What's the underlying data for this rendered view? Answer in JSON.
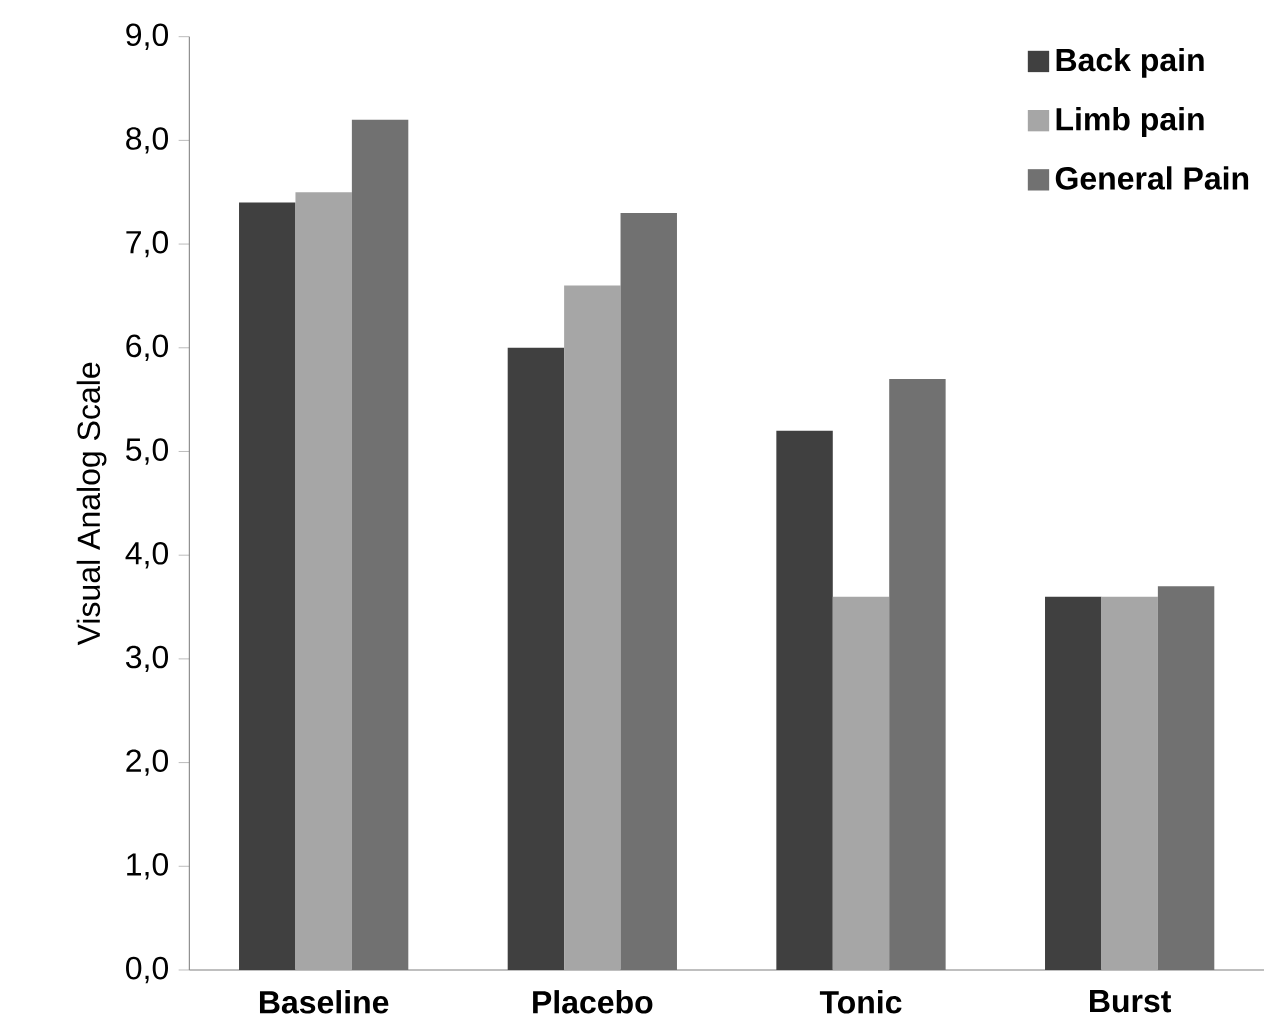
{
  "chart_data": {
    "type": "bar",
    "ylabel": "Visual Analog Scale",
    "categories": [
      "Baseline",
      "Placebo",
      "Tonic",
      "Burst"
    ],
    "series": [
      {
        "name": "Back pain",
        "color": "#404040",
        "values": [
          7.4,
          6.0,
          5.2,
          3.6
        ]
      },
      {
        "name": "Limb pain",
        "color": "#a6a6a6",
        "values": [
          7.5,
          6.6,
          3.6,
          3.6
        ]
      },
      {
        "name": "General Pain",
        "color": "#717171",
        "values": [
          8.2,
          7.3,
          5.7,
          3.7
        ]
      }
    ],
    "ylim": [
      0,
      9
    ],
    "yticks": [
      {
        "value": 0,
        "label": "0,0"
      },
      {
        "value": 1,
        "label": "1,0"
      },
      {
        "value": 2,
        "label": "2,0"
      },
      {
        "value": 3,
        "label": "3,0"
      },
      {
        "value": 4,
        "label": "4,0"
      },
      {
        "value": 5,
        "label": "5,0"
      },
      {
        "value": 6,
        "label": "6,0"
      },
      {
        "value": 7,
        "label": "7,0"
      },
      {
        "value": 8,
        "label": "8,0"
      },
      {
        "value": 9,
        "label": "9,0"
      }
    ],
    "grid": false,
    "legend": "top right"
  }
}
